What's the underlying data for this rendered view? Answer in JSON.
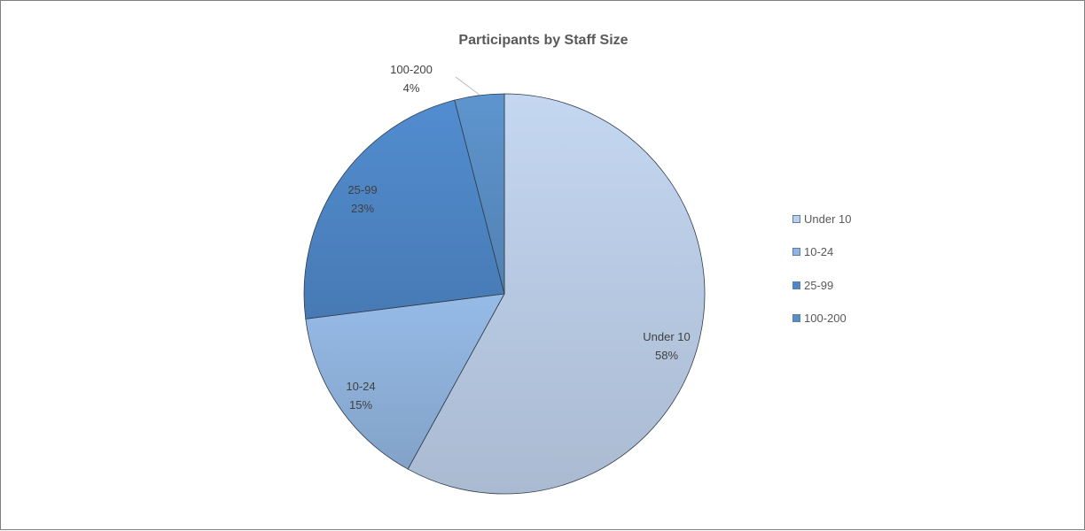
{
  "chart_data": {
    "type": "pie",
    "title": "Participants by Staff Size",
    "categories": [
      "Under 10",
      "10-24",
      "25-99",
      "100-200"
    ],
    "values": [
      58,
      15,
      23,
      4
    ],
    "value_labels": [
      "58%",
      "15%",
      "23%",
      "4%"
    ],
    "colors": [
      "#bccfe8",
      "#90b4de",
      "#4f88c8",
      "#5a8fc6"
    ],
    "legend_position": "right"
  }
}
